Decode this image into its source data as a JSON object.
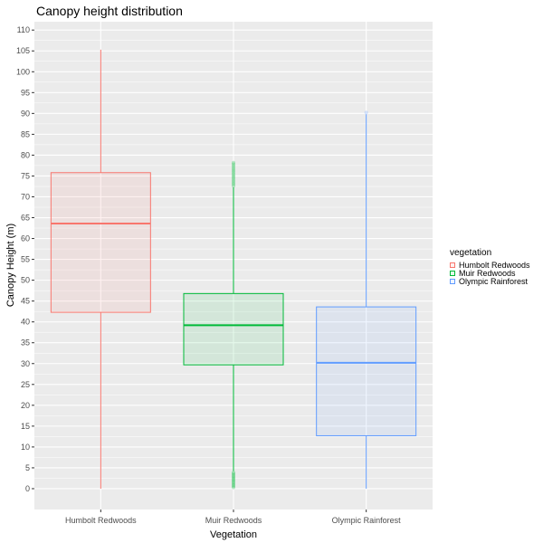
{
  "chart_data": {
    "type": "box",
    "title": "Canopy height distribution",
    "xlabel": "Vegetation",
    "ylabel": "Canopy Height (m)",
    "ylim": [
      -5,
      112
    ],
    "yticks": [
      0,
      5,
      10,
      15,
      20,
      25,
      30,
      35,
      40,
      45,
      50,
      55,
      60,
      65,
      70,
      75,
      80,
      85,
      90,
      95,
      100,
      105,
      110
    ],
    "categories": [
      "Humbolt Redwoods",
      "Muir Redwoods",
      "Olympic Rainforest"
    ],
    "legend": {
      "title": "vegetation",
      "position": "right"
    },
    "series": [
      {
        "name": "Humbolt Redwoods",
        "color": "#F8766D",
        "fill": "rgba(248,118,109,0.1)",
        "whisker_low": 0,
        "q1": 42.3,
        "median": 63.6,
        "q3": 75.8,
        "whisker_high": 105.3,
        "outliers_low": [],
        "outliers_high": []
      },
      {
        "name": "Muir Redwoods",
        "color": "#00BA38",
        "fill": "rgba(0,186,56,0.1)",
        "whisker_low": 4.2,
        "q1": 29.7,
        "median": 39.2,
        "q3": 46.8,
        "whisker_high": 72.3,
        "outliers_low": [
          0.3,
          0.6,
          0.9,
          1.2,
          1.5,
          1.8,
          2.1,
          2.4,
          2.7,
          3.0,
          3.3,
          3.6,
          3.9
        ],
        "outliers_high": [
          72.6,
          73.0,
          73.4,
          73.8,
          74.2,
          74.6,
          75.0,
          75.4,
          75.8,
          76.2,
          76.6,
          77.0,
          77.4,
          77.8,
          78.2
        ]
      },
      {
        "name": "Olympic Rainforest",
        "color": "#619CFF",
        "fill": "rgba(97,156,255,0.1)",
        "whisker_low": 0,
        "q1": 12.7,
        "median": 30.2,
        "q3": 43.6,
        "whisker_high": 89.8,
        "outliers_low": [],
        "outliers_high": [
          90.2
        ]
      }
    ]
  }
}
